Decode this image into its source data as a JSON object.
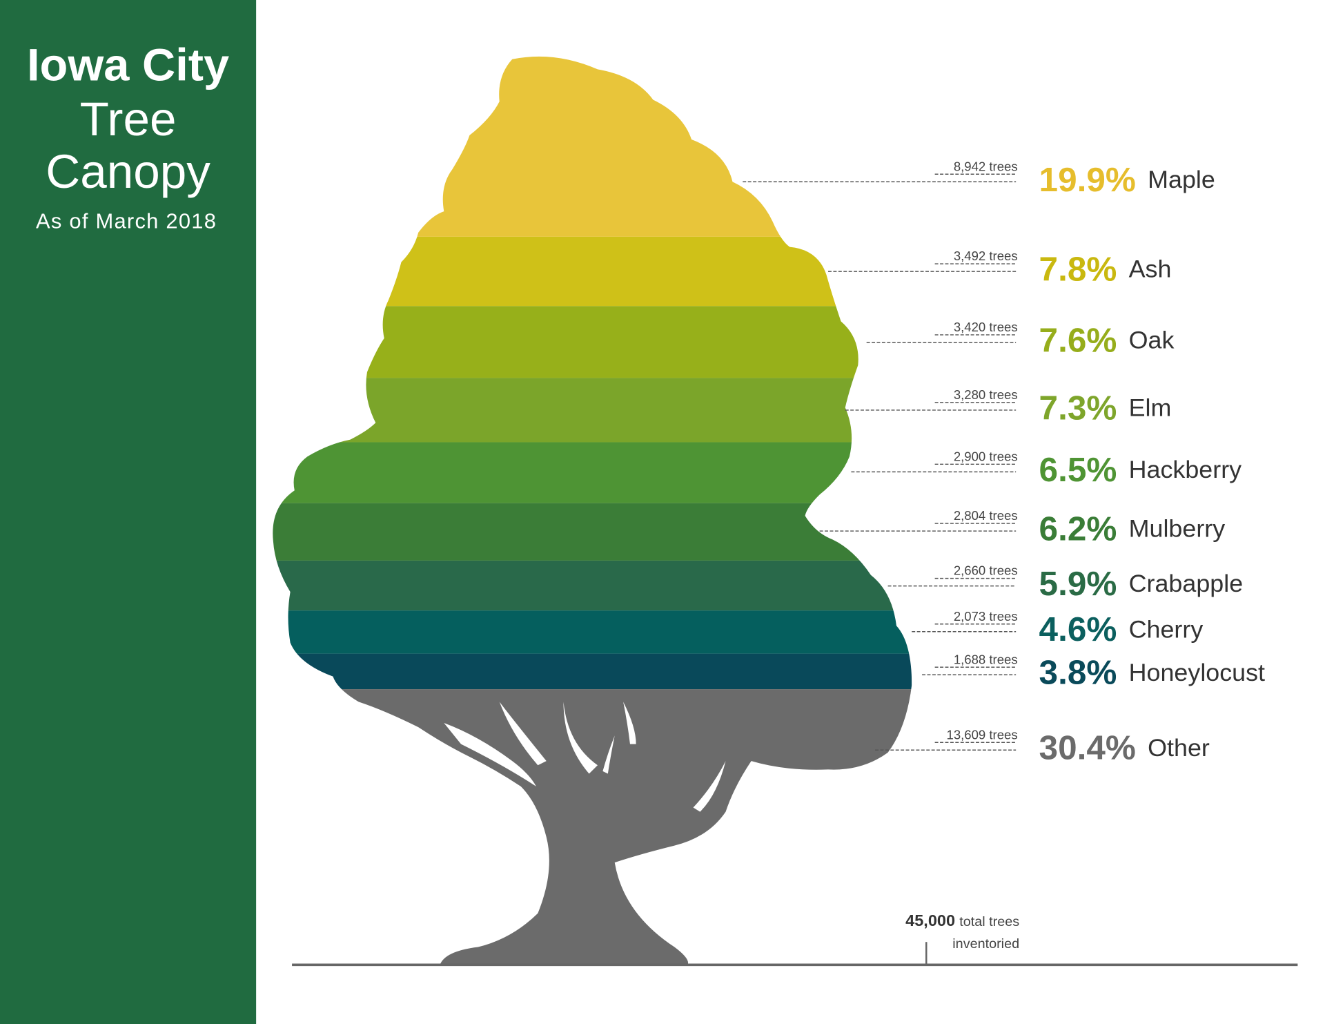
{
  "sidebar": {
    "title_lines": [
      "Iowa City",
      "Tree",
      "Canopy"
    ],
    "subtitle": "As of March 2018"
  },
  "species": [
    {
      "count": "8,942 trees",
      "percent": "19.9%",
      "name": "Maple"
    },
    {
      "count": "3,492 trees",
      "percent": "7.8%",
      "name": "Ash"
    },
    {
      "count": "3,420 trees",
      "percent": "7.6%",
      "name": "Oak"
    },
    {
      "count": "3,280 trees",
      "percent": "7.3%",
      "name": "Elm"
    },
    {
      "count": "2,900 trees",
      "percent": "6.5%",
      "name": "Hackberry"
    },
    {
      "count": "2,804 trees",
      "percent": "6.2%",
      "name": "Mulberry"
    },
    {
      "count": "2,660 trees",
      "percent": "5.9%",
      "name": "Crabapple"
    },
    {
      "count": "2,073 trees",
      "percent": "4.6%",
      "name": "Cherry"
    },
    {
      "count": "1,688 trees",
      "percent": "3.8%",
      "name": "Honeylocust"
    },
    {
      "count": "13,609 trees",
      "percent": "30.4%",
      "name": "Other"
    }
  ],
  "total": {
    "count": "45,000",
    "label_line1": "total trees",
    "label_line2": "inventoried"
  }
}
